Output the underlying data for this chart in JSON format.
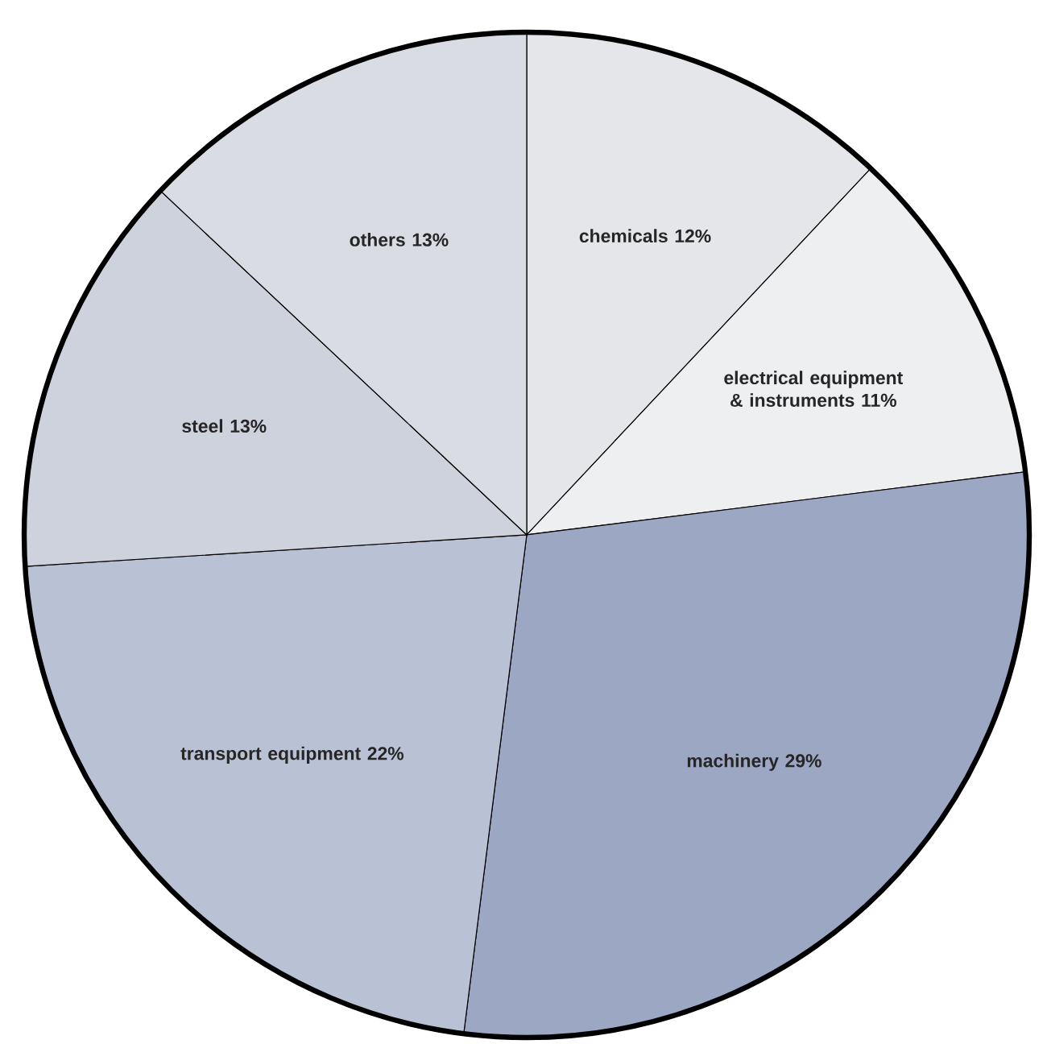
{
  "chart_data": {
    "type": "pie",
    "categories": [
      "chemicals",
      "electrical equipment & instruments",
      "machinery",
      "transport equipment",
      "steel",
      "others"
    ],
    "values": [
      12,
      11,
      29,
      22,
      13,
      13
    ],
    "value_labels": [
      "12%",
      "11%",
      "29%",
      "22%",
      "13%",
      "13%"
    ],
    "colors": [
      "#e4e6ea",
      "#eeeff1",
      "#9ba7c3",
      "#b9c1d5",
      "#cdd2dd",
      "#d9dce3"
    ]
  }
}
